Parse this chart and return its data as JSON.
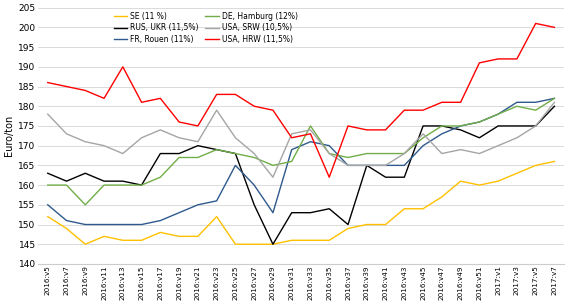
{
  "x_labels": [
    "2016:v5",
    "2016:v7",
    "2016:v9",
    "2016:v11",
    "2016:v13",
    "2016:v15",
    "2016:v17",
    "2016:v19",
    "2016:v21",
    "2016:v23",
    "2016:v25",
    "2016:v27",
    "2016:v29",
    "2016:v31",
    "2016:v33",
    "2016:v35",
    "2016:v37",
    "2016:v39",
    "2016:v41",
    "2016:v43",
    "2016:v45",
    "2016:v47",
    "2016:v49",
    "2016:v51",
    "2017:v1",
    "2017:v3",
    "2017:v5",
    "2017:v7"
  ],
  "SE": [
    152,
    149,
    145,
    147,
    146,
    146,
    148,
    147,
    147,
    152,
    145,
    145,
    145,
    146,
    146,
    146,
    149,
    150,
    150,
    154,
    154,
    157,
    161,
    160,
    161,
    163,
    165,
    166
  ],
  "RUS_UKR": [
    163,
    161,
    163,
    161,
    161,
    160,
    168,
    168,
    170,
    169,
    168,
    155,
    145,
    153,
    153,
    154,
    150,
    165,
    162,
    162,
    175,
    175,
    174,
    172,
    175,
    175,
    175,
    180
  ],
  "FR_Rouen": [
    155,
    151,
    150,
    150,
    150,
    150,
    151,
    153,
    155,
    156,
    165,
    160,
    153,
    169,
    171,
    170,
    165,
    165,
    165,
    165,
    170,
    173,
    175,
    176,
    178,
    181,
    181,
    182
  ],
  "DE_Hamburg": [
    160,
    160,
    155,
    160,
    160,
    160,
    162,
    167,
    167,
    169,
    168,
    167,
    165,
    166,
    175,
    168,
    167,
    168,
    168,
    168,
    172,
    175,
    175,
    176,
    178,
    180,
    179,
    182
  ],
  "USA_SRW": [
    178,
    173,
    171,
    170,
    168,
    172,
    174,
    172,
    171,
    179,
    172,
    168,
    162,
    173,
    174,
    168,
    165,
    165,
    165,
    168,
    173,
    168,
    169,
    168,
    170,
    172,
    175,
    181
  ],
  "USA_HRW": [
    186,
    185,
    184,
    182,
    190,
    181,
    182,
    176,
    175,
    183,
    183,
    180,
    179,
    172,
    173,
    162,
    175,
    174,
    174,
    179,
    179,
    181,
    181,
    191,
    192,
    192,
    201,
    200
  ],
  "colors": {
    "SE": "#FFC000",
    "RUS_UKR": "#000000",
    "FR_Rouen": "#2E5A8E",
    "DE_Hamburg": "#70AD47",
    "USA_SRW": "#A5A5A5",
    "USA_HRW": "#FF0000"
  },
  "legend_labels": {
    "SE": "SE (11 %)",
    "RUS_UKR": "RUS, UKR (11,5%)",
    "FR_Rouen": "FR, Rouen (11%)",
    "DE_Hamburg": "DE, Hamburg (12%)",
    "USA_SRW": "USA, SRW (10,5%)",
    "USA_HRW": "USA, HRW (11,5%)"
  },
  "ylabel": "Euro/ton",
  "ylim": [
    140,
    205
  ],
  "yticks": [
    140,
    145,
    150,
    155,
    160,
    165,
    170,
    175,
    180,
    185,
    190,
    195,
    200,
    205
  ],
  "legend_col1": [
    "SE",
    "FR_Rouen",
    "USA_SRW"
  ],
  "legend_col2": [
    "RUS_UKR",
    "DE_Hamburg",
    "USA_HRW"
  ]
}
